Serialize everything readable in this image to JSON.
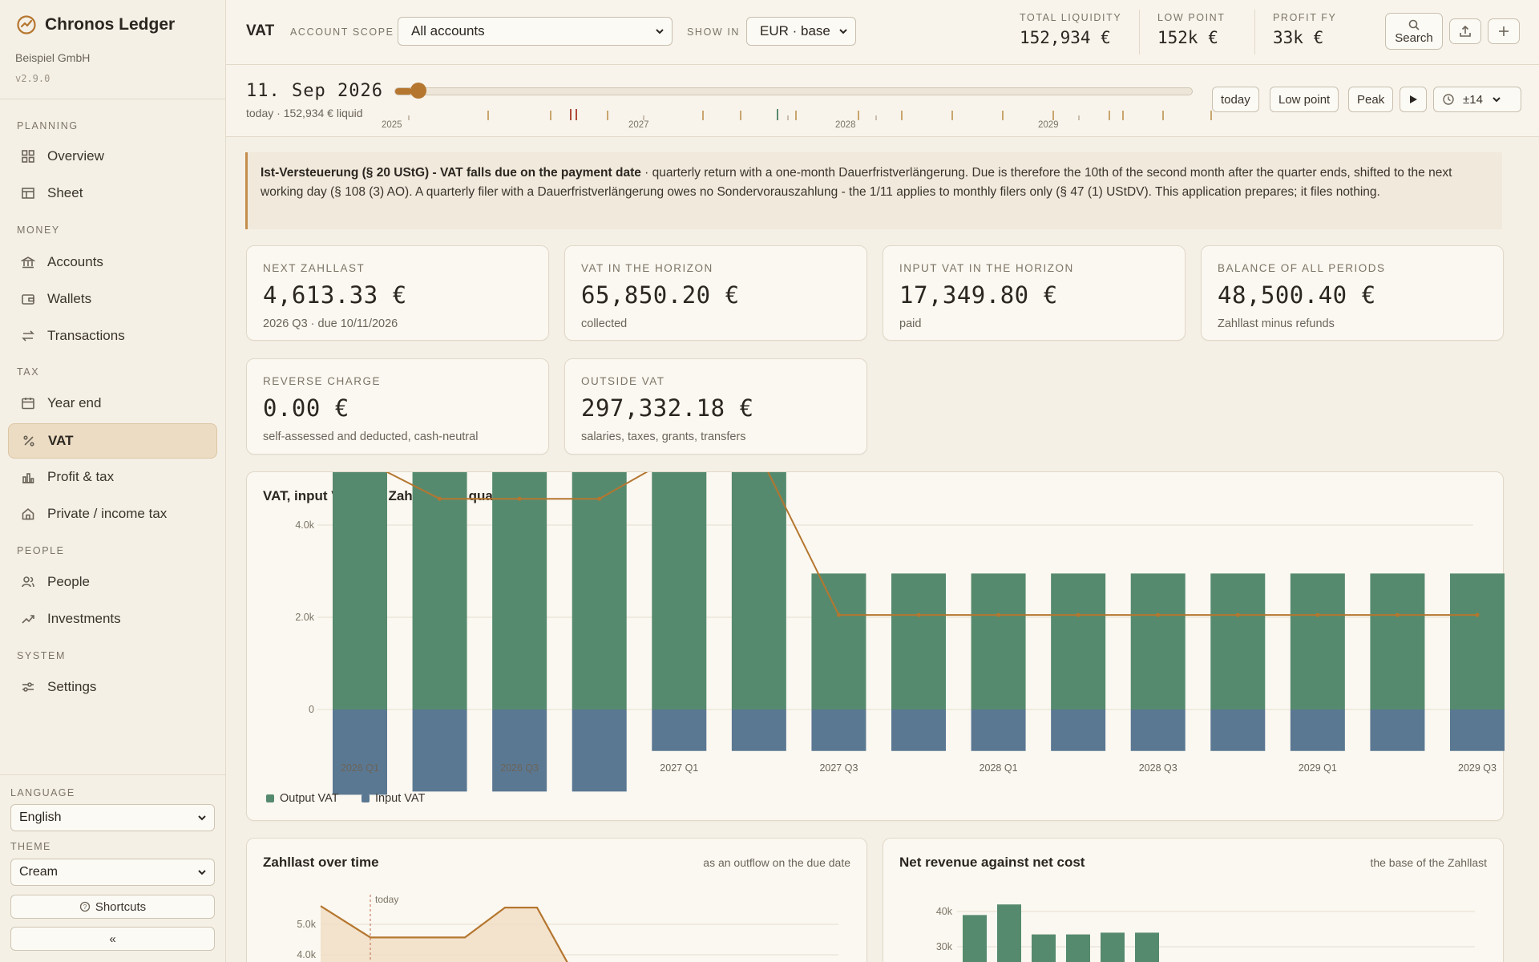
{
  "app": {
    "name": "Chronos Ledger",
    "company": "Beispiel GmbH",
    "version": "v2.9.0"
  },
  "sidebar": {
    "sections": [
      {
        "label": "Planning",
        "items": [
          {
            "label": "Overview",
            "icon": "grid-icon"
          },
          {
            "label": "Sheet",
            "icon": "table-icon"
          }
        ]
      },
      {
        "label": "Money",
        "items": [
          {
            "label": "Accounts",
            "icon": "bank-icon"
          },
          {
            "label": "Wallets",
            "icon": "wallet-icon"
          },
          {
            "label": "Transactions",
            "icon": "arrows-icon"
          }
        ]
      },
      {
        "label": "Tax",
        "items": [
          {
            "label": "Year end",
            "icon": "calendar-icon"
          },
          {
            "label": "VAT",
            "icon": "percent-icon",
            "active": true
          },
          {
            "label": "Profit & tax",
            "icon": "bar-chart-icon"
          },
          {
            "label": "Private / income tax",
            "icon": "home-icon"
          }
        ]
      },
      {
        "label": "People",
        "items": [
          {
            "label": "People",
            "icon": "people-icon"
          },
          {
            "label": "Investments",
            "icon": "trend-icon"
          }
        ]
      },
      {
        "label": "System",
        "items": [
          {
            "label": "Settings",
            "icon": "sliders-icon"
          }
        ]
      }
    ],
    "language_label": "Language",
    "language_value": "English",
    "theme_label": "Theme",
    "theme_value": "Cream",
    "shortcuts_label": "Shortcuts",
    "collapse_label": "«"
  },
  "header": {
    "title": "VAT",
    "scope_label": "Account scope",
    "scope_value": "All accounts",
    "show_in_label": "Show in",
    "show_in_value": "EUR · base",
    "kpis": [
      {
        "label": "Total liquidity",
        "value": "152,934 €"
      },
      {
        "label": "Low point",
        "value": "152k €"
      },
      {
        "label": "Profit FY",
        "value": "33k €"
      }
    ],
    "search_label": "Search"
  },
  "timeline": {
    "date": "11. Sep 2026",
    "sub": "today · 152,934 € liquid",
    "position": 0.021,
    "years": [
      "2025",
      "2027",
      "2028",
      "2029"
    ],
    "buttons": {
      "today": "today",
      "low": "Low point",
      "peak": "Peak",
      "range": "±14"
    }
  },
  "note": {
    "bold": "Ist-Versteuerung (§ 20 UStG) - VAT falls due on the payment date",
    "text": " · quarterly return with a one-month Dauerfristverlängerung. Due is therefore the 10th of the second month after the quarter ends, shifted to the next working day (§ 108 (3) AO). A quarterly filer with a Dauerfristverlängerung owes no Sondervorauszahlung - the 1/11 applies to monthly filers only (§ 47 (1) UStDV). This application prepares; it files nothing."
  },
  "cards": [
    {
      "label": "Next Zahllast",
      "value": "4,613.33 €",
      "sub": "2026 Q3 · due 10/11/2026"
    },
    {
      "label": "VAT in the horizon",
      "value": "65,850.20 €",
      "sub": "collected"
    },
    {
      "label": "Input VAT in the horizon",
      "value": "17,349.80 €",
      "sub": "paid"
    },
    {
      "label": "Balance of all periods",
      "value": "48,500.40 €",
      "sub": "Zahllast minus refunds"
    },
    {
      "label": "Reverse charge",
      "value": "0.00 €",
      "sub": "self-assessed and deducted, cash-neutral"
    },
    {
      "label": "Outside VAT",
      "value": "297,332.18 €",
      "sub": "salaries, taxes, grants, transfers"
    }
  ],
  "colors": {
    "output": "#568a6e",
    "input": "#5b7892",
    "line": "#b5762f"
  },
  "chart_data": [
    {
      "type": "bar",
      "title": "VAT, input VAT and Zahllast per quarter",
      "categories": [
        "2026 Q1",
        "2026 Q2",
        "2026 Q3",
        "2026 Q4",
        "2027 Q1",
        "2027 Q2",
        "2027 Q3",
        "2027 Q4",
        "2028 Q1",
        "2028 Q2",
        "2028 Q3",
        "2028 Q4",
        "2029 Q1",
        "2029 Q2",
        "2029 Q3"
      ],
      "tick_labels": [
        "2026 Q1",
        "",
        "2026 Q3",
        "",
        "2027 Q1",
        "",
        "2027 Q3",
        "",
        "2028 Q1",
        "",
        "2028 Q3",
        "",
        "2029 Q1",
        "",
        "2029 Q3"
      ],
      "yticks": [
        "0",
        "2.0k",
        "4.0k",
        "6.0k"
      ],
      "ylim": [
        -2000,
        7300
      ],
      "series": [
        {
          "name": "Output VAT",
          "values": [
            7300,
            6350,
            6350,
            6350,
            6450,
            6450,
            2950,
            2950,
            2950,
            2950,
            2950,
            2950,
            2950,
            2950,
            2950
          ]
        },
        {
          "name": "Input VAT",
          "values": [
            -1850,
            -1780,
            -1780,
            -1780,
            -900,
            -900,
            -900,
            -900,
            -900,
            -900,
            -900,
            -900,
            -900,
            -900,
            -900
          ]
        },
        {
          "values": [
            5450,
            4570,
            4570,
            4570,
            5550,
            5550,
            2050,
            2050,
            2050,
            2050,
            2050,
            2050,
            2050,
            2050,
            2050
          ]
        }
      ],
      "legend": "bottom-left"
    },
    {
      "type": "area",
      "title": "Zahllast over time",
      "note": "as an outflow on the due date",
      "marker_label": "today",
      "yticks": [
        "4.0k",
        "5.0k"
      ],
      "values": [
        5600,
        4570,
        4570,
        4570,
        5550,
        5550,
        3500
      ]
    },
    {
      "type": "bar",
      "title": "Net revenue against net cost",
      "note": "the base of the Zahllast",
      "yticks": [
        "30k",
        "40k"
      ],
      "values": [
        39000,
        42000,
        33500,
        33500,
        34000,
        34000
      ]
    }
  ]
}
